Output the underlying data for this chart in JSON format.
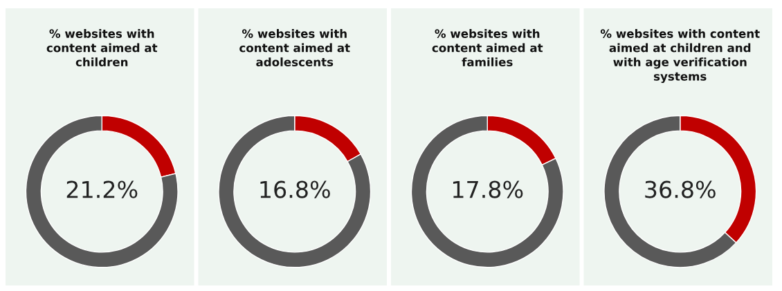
{
  "chart_data": [
    {
      "type": "donut",
      "title": "% websites with\ncontent aimed at\nchildren",
      "categories": [
        null,
        null
      ],
      "values": [
        21.2,
        78.8
      ],
      "colors": [
        "#c00000",
        "#595959"
      ],
      "value_labels": [
        "21.2%",
        null
      ]
    },
    {
      "type": "donut",
      "title": "% websites with\ncontent aimed at\nadolescents",
      "categories": [
        null,
        null
      ],
      "values": [
        16.8,
        83.2
      ],
      "colors": [
        "#c00000",
        "#595959"
      ],
      "value_labels": [
        "16.8%",
        null
      ]
    },
    {
      "type": "donut",
      "title": "% websites with\ncontent aimed at\nfamilies",
      "categories": [
        null,
        null
      ],
      "values": [
        17.8,
        82.2
      ],
      "colors": [
        "#c00000",
        "#595959"
      ],
      "value_labels": [
        "17.8%",
        null
      ]
    },
    {
      "type": "donut",
      "title": "% websites with content\naimed at children and\nwith age verification\nsystems",
      "categories": [
        null,
        null
      ],
      "values": [
        36.8,
        63.2
      ],
      "colors": [
        "#c00000",
        "#595959"
      ],
      "value_labels": [
        "36.8%",
        null
      ]
    }
  ]
}
